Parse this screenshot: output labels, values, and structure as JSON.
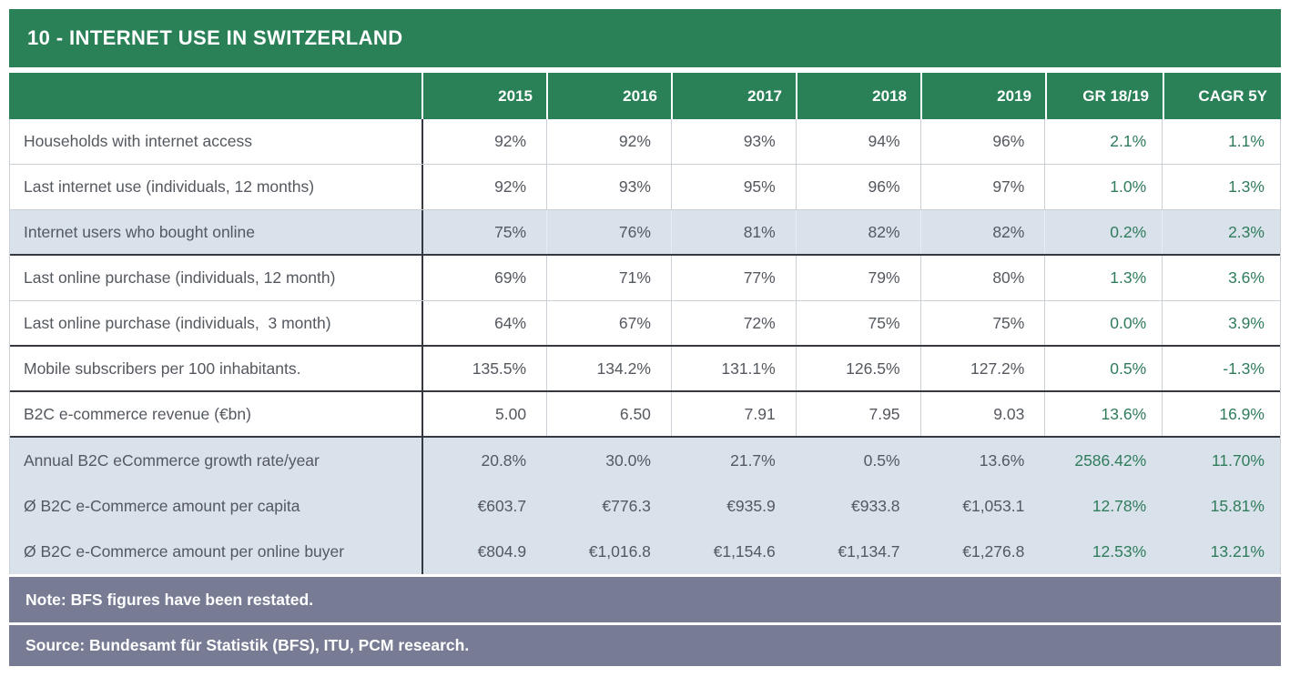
{
  "title": "10 - INTERNET USE IN SWITZERLAND",
  "note": "Note: BFS figures have been restated.",
  "source": "Source: Bundesamt für Statistik (BFS), ITU, PCM research.",
  "colors": {
    "header_green": "#2A8158",
    "accent_green_text": "#2F7C5B",
    "highlight_row": "#D9E1EB",
    "footer_bar": "#777C94",
    "body_text": "#54585F"
  },
  "table": {
    "columns": [
      "",
      "2015",
      "2016",
      "2017",
      "2018",
      "2019",
      "GR 18/19",
      "CAGR 5Y"
    ],
    "rows": [
      {
        "label": "Households with internet access",
        "values": [
          "92%",
          "92%",
          "93%",
          "94%",
          "96%",
          "2.1%",
          "1.1%"
        ],
        "highlight": false,
        "border_bottom": "light",
        "column_separators": true
      },
      {
        "label": "Last internet use (individuals, 12 months)",
        "values": [
          "92%",
          "93%",
          "95%",
          "96%",
          "97%",
          "1.0%",
          "1.3%"
        ],
        "highlight": false,
        "border_bottom": "light",
        "column_separators": true
      },
      {
        "label": "Internet users who bought online",
        "values": [
          "75%",
          "76%",
          "81%",
          "82%",
          "82%",
          "0.2%",
          "2.3%"
        ],
        "highlight": true,
        "border_bottom": "dark",
        "column_separators": true
      },
      {
        "label": "Last online purchase (individuals, 12 month)",
        "values": [
          "69%",
          "71%",
          "77%",
          "79%",
          "80%",
          "1.3%",
          "3.6%"
        ],
        "highlight": false,
        "border_bottom": "light",
        "column_separators": true
      },
      {
        "label": "Last online purchase (individuals,  3 month)",
        "values": [
          "64%",
          "67%",
          "72%",
          "75%",
          "75%",
          "0.0%",
          "3.9%"
        ],
        "highlight": false,
        "border_bottom": "dark",
        "column_separators": true
      },
      {
        "label": "Mobile subscribers per 100 inhabitants.",
        "values": [
          "135.5%",
          "134.2%",
          "131.1%",
          "126.5%",
          "127.2%",
          "0.5%",
          "-1.3%"
        ],
        "highlight": false,
        "border_bottom": "dark",
        "column_separators": true
      },
      {
        "label": "B2C e-commerce revenue (€bn)",
        "values": [
          "5.00",
          "6.50",
          "7.91",
          "7.95",
          "9.03",
          "13.6%",
          "16.9%"
        ],
        "highlight": false,
        "border_bottom": "dark",
        "column_separators": true
      },
      {
        "label": "Annual B2C eCommerce growth rate/year",
        "values": [
          "20.8%",
          "30.0%",
          "21.7%",
          "0.5%",
          "13.6%",
          "2586.42%",
          "11.70%"
        ],
        "highlight": true,
        "border_bottom": "none",
        "column_separators": false
      },
      {
        "label": "Ø B2C e-Commerce amount per capita",
        "values": [
          "€603.7",
          "€776.3",
          "€935.9",
          "€933.8",
          "€1,053.1",
          "12.78%",
          "15.81%"
        ],
        "highlight": true,
        "border_bottom": "none",
        "column_separators": false
      },
      {
        "label": "Ø B2C e-Commerce amount per online buyer",
        "values": [
          "€804.9",
          "€1,016.8",
          "€1,154.6",
          "€1,134.7",
          "€1,276.8",
          "12.53%",
          "13.21%"
        ],
        "highlight": true,
        "border_bottom": "none",
        "column_separators": false
      }
    ]
  }
}
